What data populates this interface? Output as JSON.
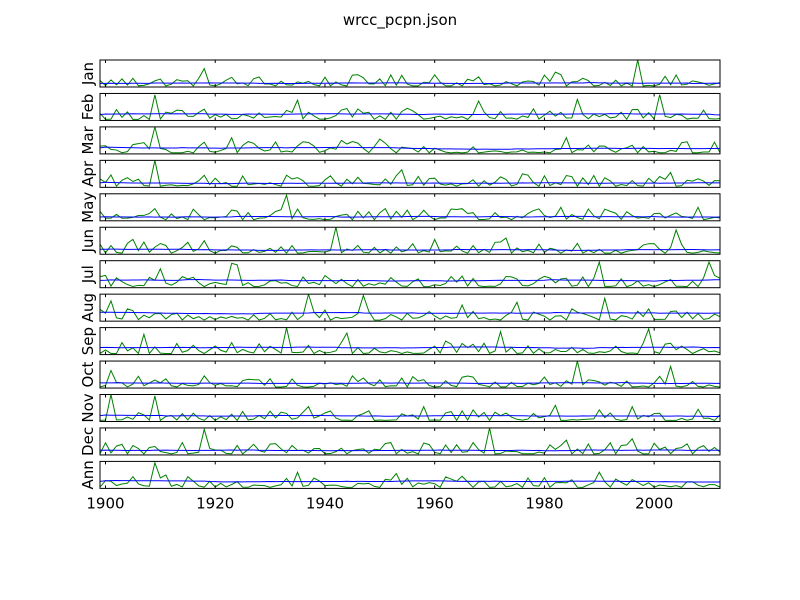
{
  "chart_data": {
    "type": "line",
    "title": "wrcc_pcpn.json",
    "x_ticks": [
      1900,
      1920,
      1940,
      1960,
      1980,
      2000
    ],
    "xlim": [
      1899,
      2012
    ],
    "years": {
      "start": 1899,
      "end": 2012
    },
    "series_colors": {
      "raw": "#008000",
      "smooth": "#0000ff"
    },
    "grid": false,
    "legend": "none",
    "panels": [
      {
        "label": "Jan",
        "ylim": [
          0,
          1
        ],
        "peaks": [
          [
            1918,
            0.68
          ],
          [
            1982,
            0.55
          ],
          [
            1997,
            1.0
          ],
          [
            1905,
            0.32
          ],
          [
            1960,
            0.45
          ],
          [
            1950,
            0.3
          ]
        ],
        "smooth_mean": 0.12
      },
      {
        "label": "Feb",
        "ylim": [
          0,
          1
        ],
        "peaks": [
          [
            1909,
            0.95
          ],
          [
            1935,
            0.75
          ],
          [
            1968,
            0.72
          ],
          [
            1986,
            0.78
          ],
          [
            2001,
            0.95
          ],
          [
            1955,
            0.45
          ]
        ],
        "smooth_mean": 0.25
      },
      {
        "label": "Mar",
        "ylim": [
          0,
          1
        ],
        "peaks": [
          [
            1909,
            1.0
          ],
          [
            1923,
            0.6
          ],
          [
            1950,
            0.55
          ],
          [
            1984,
            0.6
          ],
          [
            1943,
            0.5
          ],
          [
            2006,
            0.45
          ]
        ],
        "smooth_mean": 0.22
      },
      {
        "label": "Apr",
        "ylim": [
          0,
          1
        ],
        "peaks": [
          [
            1909,
            1.0
          ],
          [
            1954,
            0.65
          ],
          [
            1976,
            0.5
          ],
          [
            2003,
            0.55
          ],
          [
            1906,
            0.3
          ],
          [
            1987,
            0.35
          ]
        ],
        "smooth_mean": 0.13
      },
      {
        "label": "May",
        "ylim": [
          0,
          1
        ],
        "peaks": [
          [
            1933,
            0.95
          ],
          [
            1909,
            0.45
          ],
          [
            1951,
            0.45
          ],
          [
            1983,
            0.5
          ],
          [
            2008,
            0.5
          ],
          [
            1923,
            0.4
          ]
        ],
        "smooth_mean": 0.12
      },
      {
        "label": "Jun",
        "ylim": [
          0,
          1
        ],
        "peaks": [
          [
            1942,
            1.0
          ],
          [
            1905,
            0.55
          ],
          [
            1918,
            0.5
          ],
          [
            1973,
            0.6
          ],
          [
            2004,
            0.9
          ],
          [
            1960,
            0.55
          ]
        ],
        "smooth_mean": 0.15
      },
      {
        "label": "Jul",
        "ylim": [
          0,
          1
        ],
        "peaks": [
          [
            1910,
            0.7
          ],
          [
            1923,
            0.9
          ],
          [
            1924,
            0.85
          ],
          [
            1990,
            0.95
          ],
          [
            2010,
            0.95
          ],
          [
            1940,
            0.45
          ]
        ],
        "smooth_mean": 0.3
      },
      {
        "label": "Aug",
        "ylim": [
          0,
          1
        ],
        "peaks": [
          [
            1937,
            1.0
          ],
          [
            1901,
            0.75
          ],
          [
            1947,
            0.95
          ],
          [
            1975,
            0.7
          ],
          [
            1991,
            0.85
          ],
          [
            1965,
            0.6
          ]
        ],
        "smooth_mean": 0.35
      },
      {
        "label": "Sep",
        "ylim": [
          0,
          1
        ],
        "peaks": [
          [
            1933,
            1.0
          ],
          [
            1907,
            0.75
          ],
          [
            1944,
            0.8
          ],
          [
            1972,
            0.85
          ],
          [
            1999,
            0.95
          ],
          [
            1962,
            0.5
          ]
        ],
        "smooth_mean": 0.3
      },
      {
        "label": "Oct",
        "ylim": [
          0,
          1
        ],
        "peaks": [
          [
            1901,
            0.65
          ],
          [
            1986,
            1.0
          ],
          [
            2003,
            0.8
          ],
          [
            1918,
            0.45
          ],
          [
            1945,
            0.45
          ],
          [
            1965,
            0.4
          ]
        ],
        "smooth_mean": 0.18
      },
      {
        "label": "Nov",
        "ylim": [
          0,
          1
        ],
        "peaks": [
          [
            1901,
            1.0
          ],
          [
            1909,
            0.95
          ],
          [
            1937,
            0.55
          ],
          [
            1958,
            0.55
          ],
          [
            1982,
            0.6
          ],
          [
            1996,
            0.55
          ]
        ],
        "smooth_mean": 0.22
      },
      {
        "label": "Dec",
        "ylim": [
          0,
          1
        ],
        "peaks": [
          [
            1918,
            0.95
          ],
          [
            1970,
            1.0
          ],
          [
            1930,
            0.4
          ],
          [
            1984,
            0.55
          ],
          [
            1996,
            0.6
          ],
          [
            1905,
            0.35
          ]
        ],
        "smooth_mean": 0.15
      },
      {
        "label": "Ann",
        "ylim": [
          0,
          1
        ],
        "peaks": [
          [
            1909,
            0.95
          ],
          [
            1935,
            0.6
          ],
          [
            1953,
            0.55
          ],
          [
            1990,
            0.6
          ],
          [
            1911,
            0.5
          ],
          [
            1965,
            0.45
          ]
        ],
        "smooth_mean": 0.3
      }
    ]
  }
}
